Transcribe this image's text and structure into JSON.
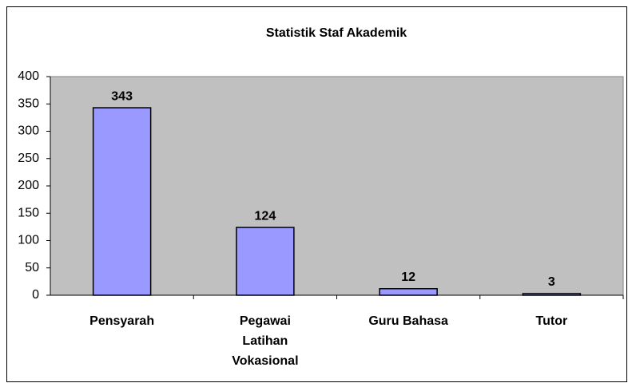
{
  "chart_data": {
    "type": "bar",
    "title": "Statistik Staf Akademik",
    "categories": [
      "Pensyarah",
      "Pegawai Latihan Vokasional",
      "Guru Bahasa",
      "Tutor"
    ],
    "values": [
      343,
      124,
      12,
      3
    ],
    "color": "#9999ff",
    "ylim": [
      0,
      400
    ],
    "yticks": [
      0,
      50,
      100,
      150,
      200,
      250,
      300,
      350,
      400
    ],
    "grid": false
  }
}
